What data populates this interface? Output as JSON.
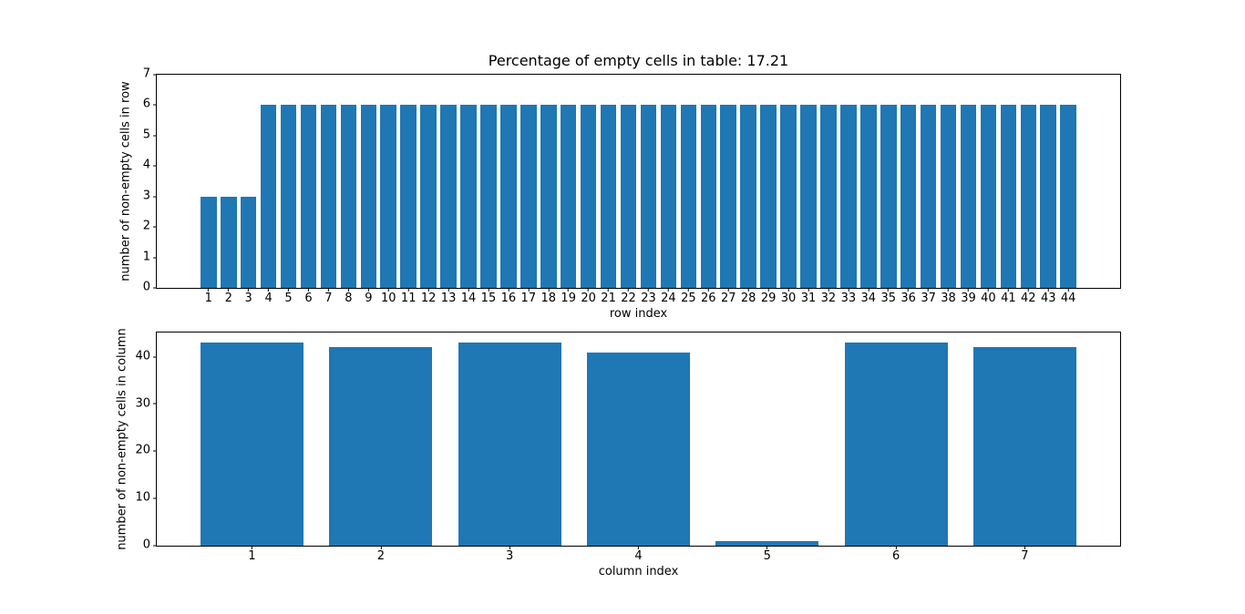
{
  "figure": {
    "background": "#ffffff",
    "spine_color": "#000000",
    "text_color": "#000000"
  },
  "chart_data": [
    {
      "type": "bar",
      "title": "Percentage of empty cells in table: 17.21",
      "xlabel": "row index",
      "ylabel": "number of non-empty cells in row",
      "categories": [
        1,
        2,
        3,
        4,
        5,
        6,
        7,
        8,
        9,
        10,
        11,
        12,
        13,
        14,
        15,
        16,
        17,
        18,
        19,
        20,
        21,
        22,
        23,
        24,
        25,
        26,
        27,
        28,
        29,
        30,
        31,
        32,
        33,
        34,
        35,
        36,
        37,
        38,
        39,
        40,
        41,
        42,
        43,
        44
      ],
      "values": [
        3,
        3,
        3,
        6,
        6,
        6,
        6,
        6,
        6,
        6,
        6,
        6,
        6,
        6,
        6,
        6,
        6,
        6,
        6,
        6,
        6,
        6,
        6,
        6,
        6,
        6,
        6,
        6,
        6,
        6,
        6,
        6,
        6,
        6,
        6,
        6,
        6,
        6,
        6,
        6,
        6,
        6,
        6,
        6
      ],
      "ylim": [
        0,
        7
      ],
      "yticks": [
        0,
        1,
        2,
        3,
        4,
        5,
        6,
        7
      ],
      "xlim": [
        -1.59,
        46.59
      ],
      "bar_width": 0.8,
      "bar_color": "#1f77b4",
      "grid": false,
      "legend": null
    },
    {
      "type": "bar",
      "title": "",
      "xlabel": "column index",
      "ylabel": "number of non-empty cells in column",
      "categories": [
        1,
        2,
        3,
        4,
        5,
        6,
        7
      ],
      "values": [
        43,
        42,
        43,
        41,
        1,
        43,
        42
      ],
      "ylim": [
        0,
        45.15
      ],
      "yticks": [
        0,
        10,
        20,
        30,
        40
      ],
      "xlim": [
        0.26,
        7.74
      ],
      "bar_width": 0.8,
      "bar_color": "#1f77b4",
      "grid": false,
      "legend": null
    }
  ]
}
